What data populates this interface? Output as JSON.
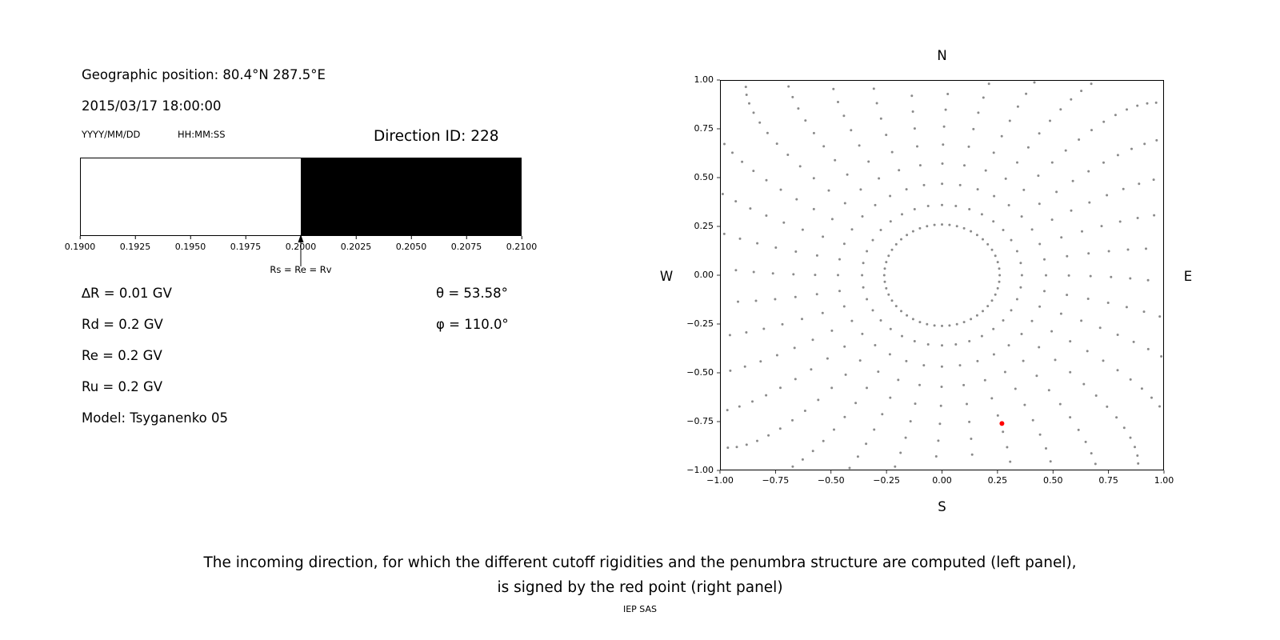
{
  "left_panel": {
    "geo_position": "Geographic position: 80.4°N 287.5°E",
    "datetime": "2015/03/17 18:00:00",
    "date_format_hint": "YYYY/MM/DD",
    "time_format_hint": "HH:MM:SS",
    "direction_id": "Direction ID: 228",
    "params": [
      "∆R = 0.01 GV",
      "Rd = 0.2 GV",
      "Re = 0.2 GV",
      "Ru = 0.2 GV",
      "Model: Tsyganenko 05"
    ],
    "theta": "θ = 53.58°",
    "phi": "φ = 110.0°"
  },
  "caption": {
    "line1": "The incoming direction, for which the different cutoff rigidities and the penumbra structure are computed (left panel),",
    "line2": "is signed by the red point (right panel)"
  },
  "footer": "IEP SAS",
  "chart_data": [
    {
      "type": "bar",
      "name": "penumbra-structure",
      "xlim": [
        0.19,
        0.21
      ],
      "xtick_labels": [
        "0.1900",
        "0.1925",
        "0.1950",
        "0.1975",
        "0.2000",
        "0.2025",
        "0.2050",
        "0.2075",
        "0.2100"
      ],
      "bands": [
        {
          "from": 0.19,
          "to": 0.2,
          "color": "#ffffff"
        },
        {
          "from": 0.2,
          "to": 0.21,
          "color": "#000000"
        }
      ],
      "marker": {
        "x": 0.2,
        "label": "Rs = Re = Rv"
      }
    },
    {
      "type": "scatter",
      "name": "incoming-directions",
      "xlim": [
        -1,
        1
      ],
      "ylim": [
        -1,
        1
      ],
      "xtick_labels": [
        "−1.00",
        "−0.75",
        "−0.50",
        "−0.25",
        "0.00",
        "0.25",
        "0.50",
        "0.75",
        "1.00"
      ],
      "ytick_labels": [
        "1.00",
        "0.75",
        "0.50",
        "0.25",
        "0.00",
        "−0.25",
        "−0.50",
        "−0.75",
        "−1.00"
      ],
      "compass": {
        "top": "N",
        "bottom": "S",
        "left": "W",
        "right": "E"
      },
      "dot_color": "#8a8a8a",
      "red_point": {
        "x": 0.27,
        "y": -0.76,
        "color": "#ff0000"
      },
      "pattern": {
        "spokes": 36,
        "points_per_spoke": 16,
        "spoke_start_radius": 0.36,
        "spoke_end_radius": 1.34,
        "bunching_exponent": 1.7,
        "curvature_deg": 10,
        "inner_ring_radius": 0.26,
        "inner_ring_points": 48
      }
    }
  ]
}
